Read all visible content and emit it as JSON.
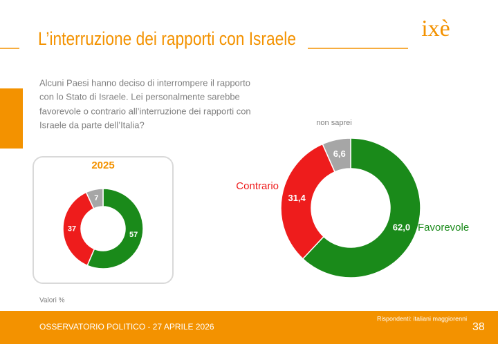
{
  "header": {
    "title": "L’interruzione dei rapporti con Israele",
    "logo": "ixè"
  },
  "question": [
    "Alcuni Paesi hanno deciso di interrompere il rapporto",
    "con lo Stato di Israele. Lei personalmente sarebbe",
    "favorevole o contrario all’interruzione dei rapporti con",
    "Israele da parte dell’Italia?"
  ],
  "note": "Valori %",
  "footer": {
    "left": "OSSERVATORIO POLITICO - 27 APRILE 2026",
    "respondents": "Rispondenti: italiani maggiorenni",
    "page": "38"
  },
  "chart_data": [
    {
      "type": "donut",
      "title": "2025",
      "values": [
        57,
        37,
        7
      ],
      "colors": [
        "#1a8a1a",
        "#ee1c1c",
        "#a6a6a6"
      ]
    },
    {
      "type": "donut",
      "categories": [
        "Favorevole",
        "Contrario",
        "non saprei"
      ],
      "values": [
        62.0,
        31.4,
        6.6
      ],
      "value_labels": [
        "62,0",
        "31,4",
        "6,6"
      ],
      "colors": [
        "#1a8a1a",
        "#ee1c1c",
        "#a6a6a6"
      ]
    }
  ]
}
